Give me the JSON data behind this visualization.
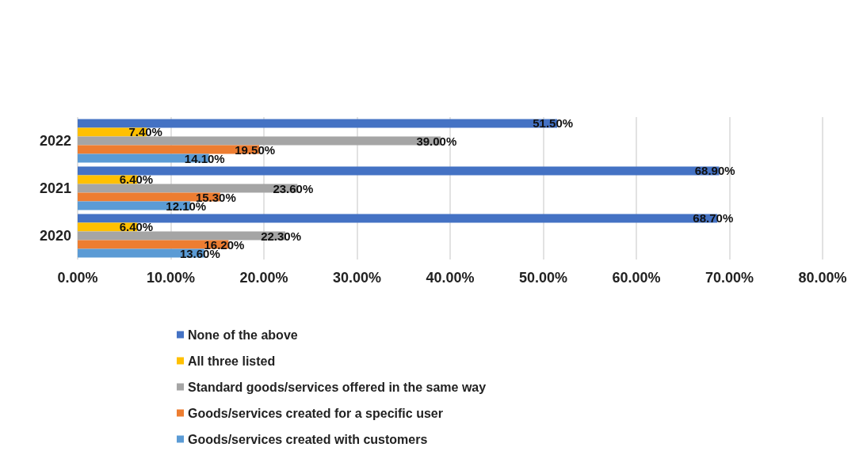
{
  "chart_data": {
    "type": "bar",
    "orientation": "horizontal",
    "categories": [
      "2022",
      "2021",
      "2020"
    ],
    "series": [
      {
        "name": "None of the above",
        "color": "#4472c4",
        "values": [
          51.5,
          68.9,
          68.7
        ],
        "value_labels": [
          "51.50%",
          "68.90%",
          "68.70%"
        ]
      },
      {
        "name": "All three listed",
        "color": "#ffc000",
        "values": [
          7.4,
          6.4,
          6.4
        ],
        "value_labels": [
          "7.40%",
          "6.40%",
          "6.40%"
        ]
      },
      {
        "name": "Standard goods/services offered in the same way",
        "color": "#a5a5a5",
        "values": [
          39.0,
          23.6,
          22.3
        ],
        "value_labels": [
          "39.00%",
          "23.60%",
          "22.30%"
        ]
      },
      {
        "name": "Goods/services created for a specific user",
        "color": "#ed7d31",
        "values": [
          19.5,
          15.3,
          16.2
        ],
        "value_labels": [
          "19.50%",
          "15.30%",
          "16.20%"
        ]
      },
      {
        "name": "Goods/services created with customers",
        "color": "#5b9bd5",
        "values": [
          14.1,
          12.1,
          13.6
        ],
        "value_labels": [
          "14.10%",
          "12.10%",
          "13.60%"
        ]
      }
    ],
    "xlim": [
      0,
      80
    ],
    "xticks": [
      {
        "value": 0,
        "label": "0.00%"
      },
      {
        "value": 10,
        "label": "10.00%"
      },
      {
        "value": 20,
        "label": "20.00%"
      },
      {
        "value": 30,
        "label": "30.00%"
      },
      {
        "value": 40,
        "label": "40.00%"
      },
      {
        "value": 50,
        "label": "50.00%"
      },
      {
        "value": 60,
        "label": "60.00%"
      },
      {
        "value": 70,
        "label": "70.00%"
      },
      {
        "value": 80,
        "label": "80.00%"
      }
    ],
    "grid": "x",
    "legend": "bottom"
  }
}
